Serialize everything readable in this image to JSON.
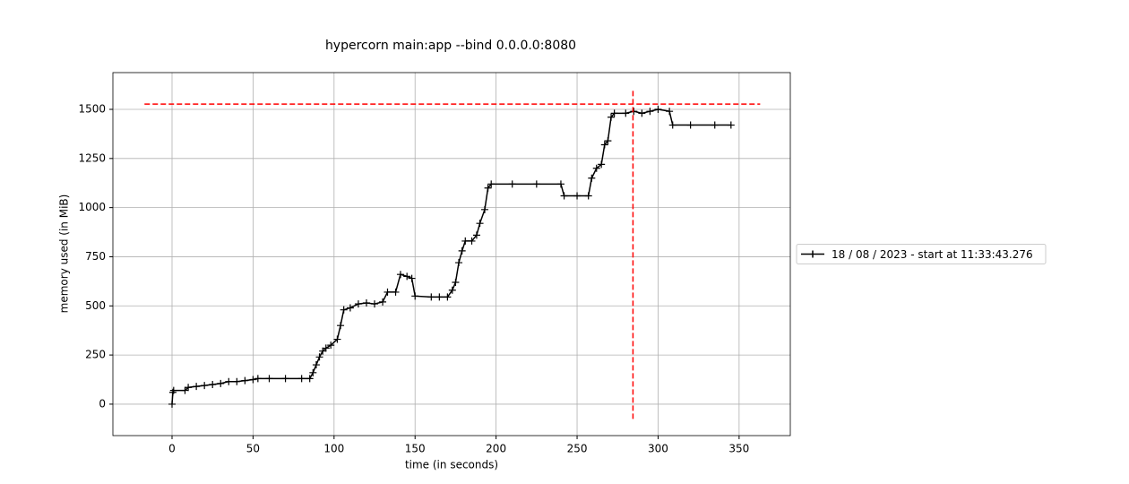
{
  "chart_data": {
    "type": "line",
    "title": "hypercorn main:app --bind 0.0.0.0:8080",
    "xlabel": "time (in seconds)",
    "ylabel": "memory used (in MiB)",
    "x": [
      0,
      0.5,
      1,
      8,
      10,
      15,
      20,
      25,
      30,
      35,
      40,
      45,
      50,
      53,
      60,
      70,
      80,
      85,
      87,
      89,
      91,
      93,
      95,
      98,
      102,
      104,
      106,
      110,
      115,
      120,
      125,
      130,
      133,
      138,
      141,
      145,
      148,
      150,
      160,
      165,
      170,
      173,
      175,
      177,
      179,
      181,
      185,
      188,
      190,
      193,
      195,
      197,
      210,
      225,
      240,
      242,
      250,
      257,
      259,
      262,
      265,
      267,
      269,
      271,
      273,
      280,
      285,
      290,
      295,
      300,
      307,
      309,
      320,
      335,
      345
    ],
    "series": [
      {
        "name": "18 / 08 / 2023 - start at 11:33:43.276",
        "color": "#000000",
        "values": [
          0,
          60,
          70,
          70,
          85,
          90,
          95,
          100,
          105,
          115,
          115,
          120,
          125,
          130,
          130,
          130,
          130,
          130,
          160,
          200,
          240,
          270,
          285,
          300,
          330,
          400,
          480,
          490,
          510,
          515,
          510,
          520,
          570,
          570,
          660,
          650,
          640,
          550,
          545,
          545,
          545,
          580,
          620,
          720,
          780,
          830,
          830,
          860,
          920,
          990,
          1100,
          1120,
          1120,
          1120,
          1120,
          1060,
          1060,
          1060,
          1150,
          1200,
          1220,
          1320,
          1340,
          1460,
          1480,
          1480,
          1490,
          1480,
          1490,
          1500,
          1490,
          1420,
          1420,
          1420,
          1420
        ]
      }
    ],
    "hlines": [
      {
        "y": 1527,
        "xmin": -17,
        "xmax": 363,
        "color": "#ff0000"
      }
    ],
    "vlines": [
      {
        "x": 284.5,
        "ymin": -75,
        "ymax": 1605,
        "color": "#ff0000"
      }
    ],
    "xlim": [
      -36.5,
      381.6
    ],
    "ylim": [
      -160,
      1687
    ],
    "xticks": [
      0,
      50,
      100,
      150,
      200,
      250,
      300,
      350
    ],
    "yticks": [
      0,
      250,
      500,
      750,
      1000,
      1250,
      1500
    ],
    "grid": true,
    "legend": "center right outside"
  }
}
